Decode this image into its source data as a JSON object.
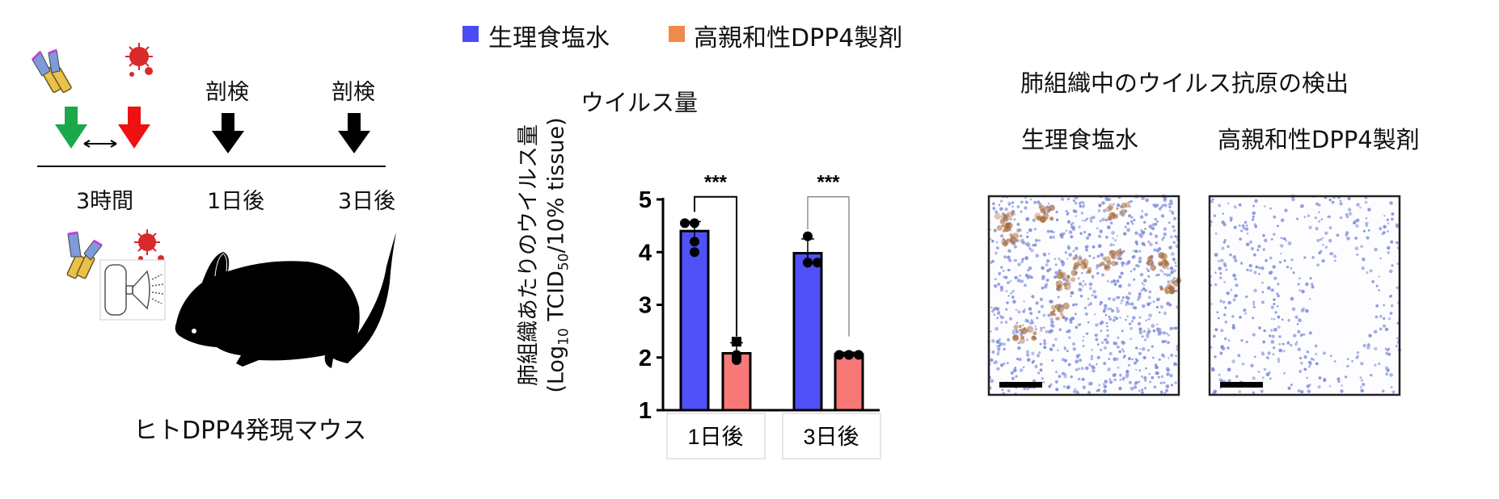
{
  "legend": {
    "items": [
      {
        "label": "生理食塩水",
        "color": "#4b4bf5"
      },
      {
        "label": "高親和性DPP4製剤",
        "color": "#f08a4b"
      }
    ]
  },
  "protocol": {
    "events": [
      "剖検",
      "剖検"
    ],
    "timeline_labels": [
      "3時間",
      "1日後",
      "3日後"
    ],
    "arrow_colors": {
      "treatment": "#1aa84a",
      "infection": "#ee1111",
      "necropsy": "#000000"
    },
    "mouse_label": "ヒトDPP4発現マウス",
    "icons": [
      "antibody-icon",
      "virus-icon",
      "nebulizer-icon",
      "mouse-silhouette"
    ]
  },
  "chart_data": {
    "type": "bar",
    "title": "ウイルス量",
    "ylabel_line1": "肺組織あたりのウイルス量",
    "ylabel_line2_prefix": "(Log",
    "ylabel_line2_sub1": "10",
    "ylabel_line2_mid": " TCID",
    "ylabel_line2_sub2": "50",
    "ylabel_line2_suffix": "/10% tissue)",
    "ylim": [
      1,
      5
    ],
    "yticks": [
      "1",
      "2",
      "3",
      "4",
      "5"
    ],
    "categories": [
      "1日後",
      "3日後"
    ],
    "series": [
      {
        "name": "生理食塩水",
        "color": "#5050f7",
        "values": [
          4.4,
          3.98
        ],
        "sd": [
          0.18,
          0.27
        ],
        "points": [
          [
            4.55,
            4.55,
            4.2,
            4.0
          ],
          [
            4.3,
            3.8,
            3.8,
            3.8
          ]
        ]
      },
      {
        "name": "高親和性DPP4製剤",
        "color": "#f87878",
        "values": [
          2.08,
          2.06
        ],
        "sd": [
          0.2,
          0.04
        ],
        "points": [
          [
            2.3,
            2.05,
            2.0,
            1.95
          ],
          [
            2.05,
            2.05,
            2.05,
            2.05
          ]
        ]
      }
    ],
    "significance": [
      "***",
      "***"
    ],
    "grid": false
  },
  "histology": {
    "title": "肺組織中のウイルス抗原の検出",
    "panels": [
      {
        "label": "生理食塩水",
        "stained": true
      },
      {
        "label": "高親和性DPP4製剤",
        "stained": false
      }
    ],
    "stain_color": "#a8693a",
    "nuclei_color": "#7f8fd8"
  }
}
